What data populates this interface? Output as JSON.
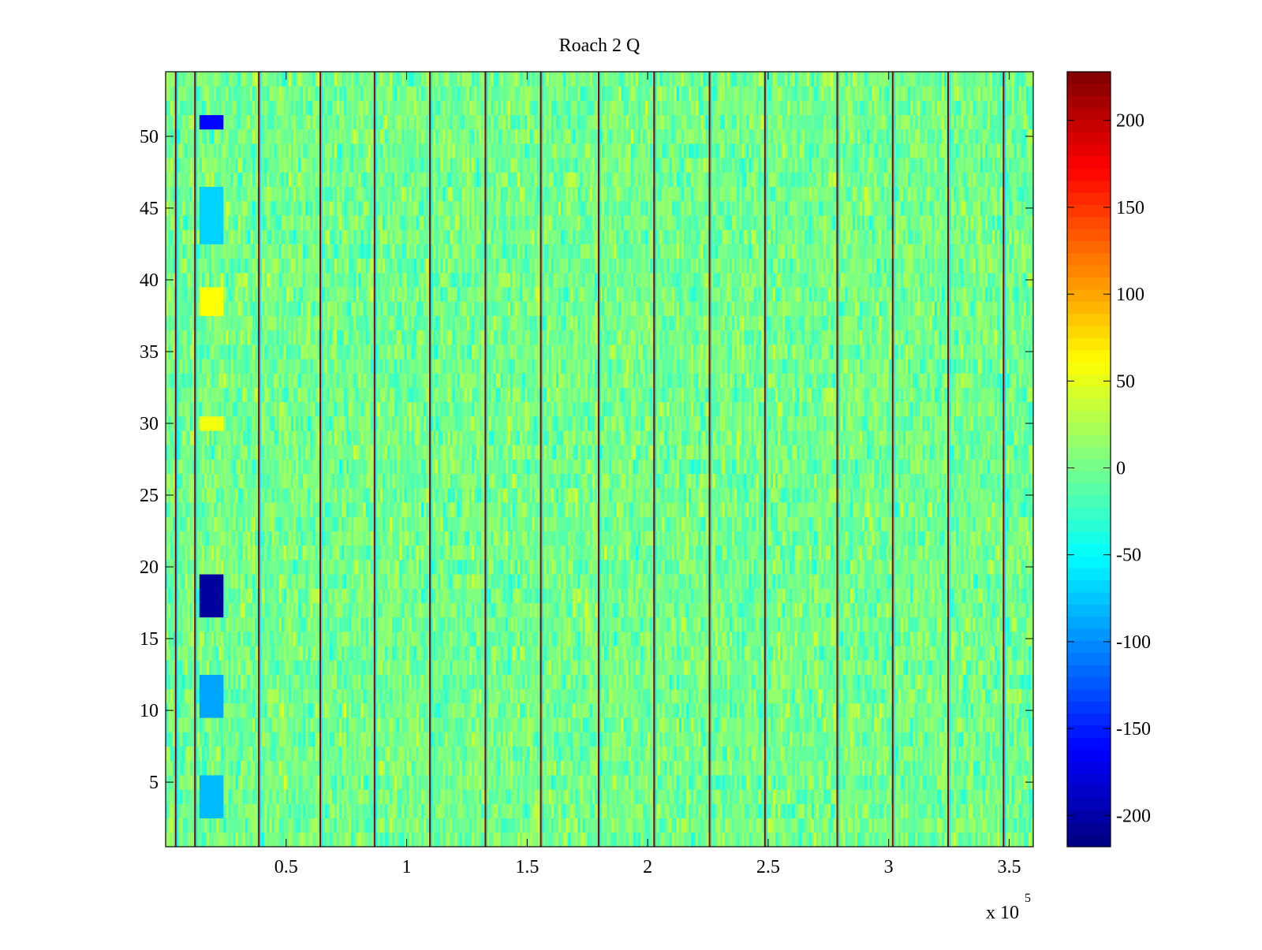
{
  "chart_data": {
    "type": "heatmap",
    "title": "Roach 2 Q",
    "xlabel": "",
    "ylabel": "",
    "x_multiplier_label": "x 10",
    "x_multiplier_exponent": "5",
    "xlim": [
      1,
      360000
    ],
    "ylim": [
      0.5,
      54.5
    ],
    "xticks": [
      0.5,
      1,
      1.5,
      2,
      2.5,
      3,
      3.5
    ],
    "xtick_labels": [
      "0.5",
      "1",
      "1.5",
      "2",
      "2.5",
      "3",
      "3.5"
    ],
    "yticks": [
      5,
      10,
      15,
      20,
      25,
      30,
      35,
      40,
      45,
      50
    ],
    "ytick_labels": [
      "5",
      "10",
      "15",
      "20",
      "25",
      "30",
      "35",
      "40",
      "45",
      "50"
    ],
    "rows": 54,
    "colormap": "jet",
    "clim": [
      -218,
      228
    ],
    "colorbar": {
      "ticks": [
        -200,
        -150,
        -100,
        -50,
        0,
        50,
        100,
        150,
        200
      ],
      "tick_labels": [
        "-200",
        "-150",
        "-100",
        "-50",
        "0",
        "50",
        "100",
        "150",
        "200"
      ]
    },
    "background_level": 0,
    "spike_columns_x": [
      4500,
      12500,
      39000,
      64500,
      87000,
      110000,
      133000,
      156000,
      180000,
      203000,
      226000,
      249000,
      279000,
      302000,
      325000,
      348000
    ],
    "low_regions": [
      {
        "x": [
          14000,
          24000
        ],
        "y": [
          16.5,
          19.5
        ],
        "value": -205
      },
      {
        "x": [
          14000,
          24000
        ],
        "y": [
          50.5,
          51.5
        ],
        "value": -160
      },
      {
        "x": [
          14000,
          24000
        ],
        "y": [
          9.5,
          12.5
        ],
        "value": -90
      },
      {
        "x": [
          14000,
          24000
        ],
        "y": [
          2.5,
          5.5
        ],
        "value": -80
      },
      {
        "x": [
          14000,
          24000
        ],
        "y": [
          42.5,
          46.5
        ],
        "value": -70
      }
    ],
    "high_regions": [
      {
        "x": [
          14000,
          24000
        ],
        "y": [
          37.5,
          39.5
        ],
        "value": 60
      },
      {
        "x": [
          14000,
          24000
        ],
        "y": [
          29.5,
          30.5
        ],
        "value": 55
      }
    ]
  }
}
